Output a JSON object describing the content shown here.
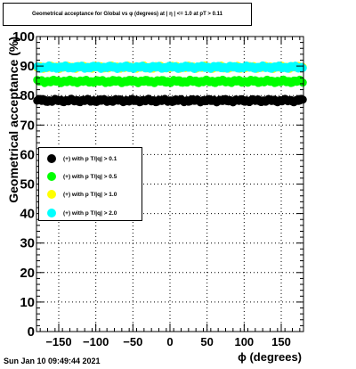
{
  "title": "Geometrical acceptance for Global vs φ (degrees) at | η | <= 1.0 at pT > 0.11",
  "timestamp": "Sun Jan 10 09:49:44 2021",
  "chart_data": {
    "type": "scatter",
    "xlabel": "ϕ (degrees)",
    "ylabel": "Geometrical acceptance (%)",
    "xlim": [
      -180,
      180
    ],
    "ylim": [
      0,
      100
    ],
    "xticks": [
      -150,
      -100,
      -50,
      0,
      50,
      100,
      150
    ],
    "yticks": [
      0,
      10,
      20,
      30,
      40,
      50,
      60,
      70,
      80,
      90,
      100
    ],
    "grid": true,
    "legend_position": "middle-left",
    "series": [
      {
        "name": "(+) with p T/|q| > 0.1",
        "color": "#000000",
        "y_level": 78.3
      },
      {
        "name": "(+) with p T/|q| > 0.5",
        "color": "#00ff00",
        "y_level": 84.8
      },
      {
        "name": "(+) with p T/|q| > 1.0",
        "color": "#ffff00",
        "y_level": 89.6
      },
      {
        "name": "(+) with p T/|q| > 2.0",
        "color": "#00ffff",
        "y_level": 89.6
      }
    ]
  }
}
